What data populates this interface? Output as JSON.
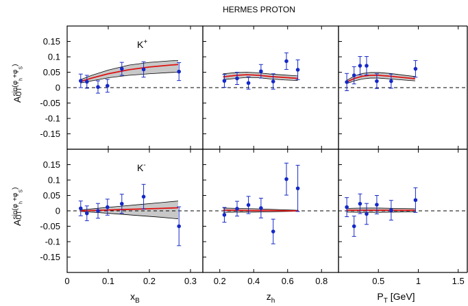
{
  "figure_title": "HERMES PROTON",
  "colors": {
    "points": "#1428c8",
    "curve": "#e01010",
    "band_fill": "#c8c8c8",
    "band_edge": "#000000",
    "frame": "#000000"
  },
  "y_axis": {
    "label_main": "A",
    "label_sub": "UT",
    "label_sup_pre": "sin(φ",
    "label_sup_h": "h",
    "label_sup_mid": "+φ",
    "label_sup_s": "S",
    "label_sup_post": ")",
    "ylim": [
      -0.2,
      0.2
    ],
    "ticks": [
      0.15,
      0.1,
      0.05,
      0,
      -0.05,
      -0.1,
      -0.15
    ],
    "tick_labels": [
      "0.15",
      "0.1",
      "0.05",
      "0",
      "-0.05",
      "-0.1",
      "-0.15"
    ]
  },
  "columns": [
    {
      "xlabel_main": "x",
      "xlabel_sub": "B",
      "xlim": [
        0,
        0.33
      ],
      "ticks": [
        0,
        0.1,
        0.2,
        0.3
      ],
      "tick_labels": [
        "0",
        "0.1",
        "0.2",
        "0.3"
      ]
    },
    {
      "xlabel_main": "z",
      "xlabel_sub": "h",
      "xlim": [
        0.1,
        0.9
      ],
      "ticks": [
        0.2,
        0.4,
        0.6,
        0.8
      ],
      "tick_labels": [
        "0.2",
        "0.4",
        "0.6",
        "0.8"
      ]
    },
    {
      "xlabel_main": "P",
      "xlabel_sub": "T",
      "xlabel_suffix": " [GeV]",
      "xlim": [
        0,
        1.7
      ],
      "ticks": [
        0.5,
        1,
        1.5
      ],
      "tick_labels": [
        "0.5",
        "1",
        "1.5"
      ]
    }
  ],
  "rows": [
    {
      "label_main": "K",
      "label_sup": "+"
    },
    {
      "label_main": "K",
      "label_sup": "-"
    }
  ],
  "chart_data": {
    "type": "scatter",
    "title": "HERMES PROTON",
    "ylim": [
      -0.2,
      0.2
    ],
    "reference_line_y": 0,
    "panels": [
      {
        "row": 0,
        "col": 0,
        "points": [
          {
            "x": 0.033,
            "y": 0.022,
            "err": 0.022
          },
          {
            "x": 0.048,
            "y": 0.019,
            "err": 0.021
          },
          {
            "x": 0.075,
            "y": 0.002,
            "err": 0.02
          },
          {
            "x": 0.098,
            "y": 0.006,
            "err": 0.021
          },
          {
            "x": 0.133,
            "y": 0.061,
            "err": 0.021
          },
          {
            "x": 0.186,
            "y": 0.059,
            "err": 0.025
          },
          {
            "x": 0.272,
            "y": 0.052,
            "err": 0.029
          }
        ],
        "curve": {
          "x": [
            0.033,
            0.06,
            0.1,
            0.15,
            0.2,
            0.25,
            0.27
          ],
          "y": [
            0.02,
            0.031,
            0.045,
            0.058,
            0.067,
            0.073,
            0.075
          ]
        },
        "band": {
          "x": [
            0.033,
            0.06,
            0.1,
            0.15,
            0.2,
            0.25,
            0.27
          ],
          "upper": [
            0.026,
            0.04,
            0.057,
            0.073,
            0.082,
            0.087,
            0.088
          ],
          "lower": [
            0.015,
            0.022,
            0.032,
            0.04,
            0.045,
            0.049,
            0.05
          ]
        }
      },
      {
        "row": 0,
        "col": 1,
        "points": [
          {
            "x": 0.227,
            "y": 0.022,
            "err": 0.021
          },
          {
            "x": 0.302,
            "y": 0.03,
            "err": 0.02
          },
          {
            "x": 0.369,
            "y": 0.015,
            "err": 0.02
          },
          {
            "x": 0.443,
            "y": 0.053,
            "err": 0.022
          },
          {
            "x": 0.515,
            "y": 0.02,
            "err": 0.025
          },
          {
            "x": 0.593,
            "y": 0.086,
            "err": 0.027
          },
          {
            "x": 0.66,
            "y": 0.058,
            "err": 0.032
          }
        ],
        "curve": {
          "x": [
            0.22,
            0.3,
            0.36,
            0.43,
            0.5,
            0.58,
            0.66
          ],
          "y": [
            0.035,
            0.04,
            0.042,
            0.04,
            0.036,
            0.033,
            0.03
          ]
        },
        "band": {
          "x": [
            0.22,
            0.3,
            0.36,
            0.43,
            0.5,
            0.58,
            0.66
          ],
          "upper": [
            0.045,
            0.049,
            0.05,
            0.048,
            0.044,
            0.041,
            0.038
          ],
          "lower": [
            0.026,
            0.03,
            0.033,
            0.032,
            0.028,
            0.025,
            0.023
          ]
        }
      },
      {
        "row": 0,
        "col": 2,
        "points": [
          {
            "x": 0.104,
            "y": 0.018,
            "err": 0.028
          },
          {
            "x": 0.195,
            "y": 0.04,
            "err": 0.028
          },
          {
            "x": 0.27,
            "y": 0.071,
            "err": 0.03
          },
          {
            "x": 0.352,
            "y": 0.071,
            "err": 0.03
          },
          {
            "x": 0.48,
            "y": 0.021,
            "err": 0.024
          },
          {
            "x": 0.66,
            "y": 0.021,
            "err": 0.023
          },
          {
            "x": 0.965,
            "y": 0.061,
            "err": 0.027
          }
        ],
        "curve": {
          "x": [
            0.1,
            0.2,
            0.3,
            0.4,
            0.5,
            0.65,
            0.8,
            0.96
          ],
          "y": [
            0.018,
            0.03,
            0.037,
            0.04,
            0.04,
            0.037,
            0.033,
            0.029
          ]
        },
        "band": {
          "x": [
            0.1,
            0.2,
            0.3,
            0.4,
            0.5,
            0.65,
            0.8,
            0.96
          ],
          "upper": [
            0.023,
            0.038,
            0.046,
            0.049,
            0.049,
            0.046,
            0.041,
            0.036
          ],
          "lower": [
            0.013,
            0.022,
            0.028,
            0.031,
            0.031,
            0.028,
            0.025,
            0.022
          ]
        }
      },
      {
        "row": 1,
        "col": 0,
        "points": [
          {
            "x": 0.033,
            "y": 0.008,
            "err": 0.024
          },
          {
            "x": 0.048,
            "y": -0.008,
            "err": 0.024
          },
          {
            "x": 0.075,
            "y": 0.0,
            "err": 0.024
          },
          {
            "x": 0.098,
            "y": 0.012,
            "err": 0.026
          },
          {
            "x": 0.133,
            "y": 0.023,
            "err": 0.031
          },
          {
            "x": 0.186,
            "y": 0.046,
            "err": 0.04
          },
          {
            "x": 0.272,
            "y": -0.05,
            "err": 0.063
          }
        ],
        "curve": {
          "x": [
            0.033,
            0.08,
            0.13,
            0.18,
            0.23,
            0.27
          ],
          "y": [
            0.0,
            0.002,
            0.004,
            0.006,
            0.008,
            0.01
          ]
        },
        "band": {
          "x": [
            0.033,
            0.08,
            0.13,
            0.18,
            0.23,
            0.27
          ],
          "upper": [
            0.003,
            0.009,
            0.015,
            0.021,
            0.027,
            0.032
          ],
          "lower": [
            -0.002,
            -0.006,
            -0.011,
            -0.016,
            -0.021,
            -0.026
          ]
        }
      },
      {
        "row": 1,
        "col": 1,
        "points": [
          {
            "x": 0.227,
            "y": -0.013,
            "err": 0.024
          },
          {
            "x": 0.302,
            "y": 0.007,
            "err": 0.024
          },
          {
            "x": 0.369,
            "y": 0.019,
            "err": 0.028
          },
          {
            "x": 0.443,
            "y": 0.009,
            "err": 0.032
          },
          {
            "x": 0.515,
            "y": -0.067,
            "err": 0.04
          },
          {
            "x": 0.593,
            "y": 0.103,
            "err": 0.052
          },
          {
            "x": 0.66,
            "y": 0.073,
            "err": 0.075
          }
        ],
        "curve": {
          "x": [
            0.22,
            0.3,
            0.4,
            0.5,
            0.6,
            0.66
          ],
          "y": [
            0.002,
            0.002,
            0.001,
            0.001,
            0.0,
            0.0
          ]
        },
        "band": {
          "x": [
            0.22,
            0.3,
            0.4,
            0.5,
            0.6,
            0.66
          ],
          "upper": [
            0.009,
            0.008,
            0.007,
            0.005,
            0.003,
            0.002
          ],
          "lower": [
            -0.005,
            -0.004,
            -0.004,
            -0.003,
            -0.002,
            -0.001
          ]
        }
      },
      {
        "row": 1,
        "col": 2,
        "points": [
          {
            "x": 0.104,
            "y": 0.012,
            "err": 0.031
          },
          {
            "x": 0.195,
            "y": -0.05,
            "err": 0.033
          },
          {
            "x": 0.27,
            "y": 0.023,
            "err": 0.032
          },
          {
            "x": 0.352,
            "y": -0.01,
            "err": 0.034
          },
          {
            "x": 0.48,
            "y": 0.02,
            "err": 0.03
          },
          {
            "x": 0.66,
            "y": 0.002,
            "err": 0.032
          },
          {
            "x": 0.965,
            "y": 0.035,
            "err": 0.04
          }
        ],
        "curve": {
          "x": [
            0.1,
            0.3,
            0.5,
            0.7,
            0.96
          ],
          "y": [
            0.002,
            0.002,
            0.002,
            0.002,
            0.002
          ]
        },
        "band": {
          "x": [
            0.1,
            0.3,
            0.5,
            0.7,
            0.96
          ],
          "upper": [
            0.008,
            0.009,
            0.009,
            0.008,
            0.007
          ],
          "lower": [
            -0.004,
            -0.005,
            -0.005,
            -0.004,
            -0.003
          ]
        }
      }
    ]
  }
}
